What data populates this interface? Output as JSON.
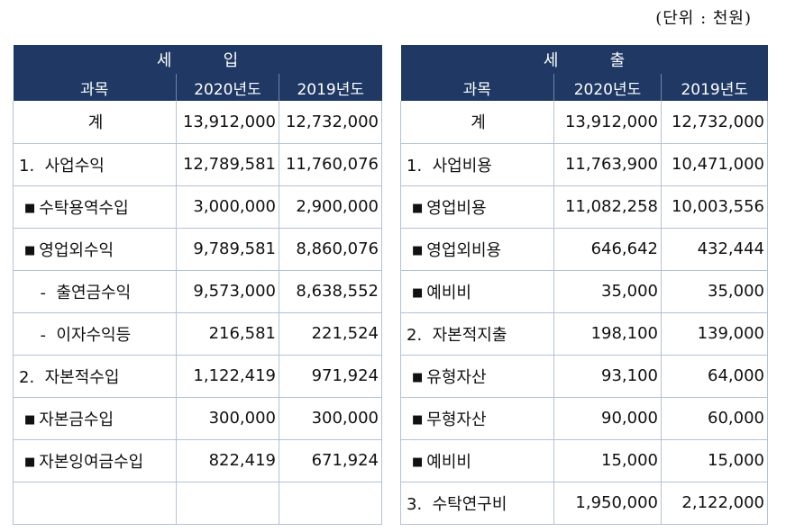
{
  "unit_label": "(단위 : 천원)",
  "colors": {
    "header_bg": "#1f3864",
    "grid": "#b3c2d6"
  },
  "revenue": {
    "title": "세          입",
    "columns": [
      "과목",
      "2020년도",
      "2019년도"
    ],
    "rows": [
      {
        "label": "계",
        "y2020": "13,912,000",
        "y2019": "12,732,000"
      },
      {
        "label": "1.  사업수익",
        "y2020": "12,789,581",
        "y2019": "11,760,076"
      },
      {
        "label": "수탁용역수입",
        "y2020": "3,000,000",
        "y2019": "2,900,000"
      },
      {
        "label": "영업외수익",
        "y2020": "9,789,581",
        "y2019": "8,860,076"
      },
      {
        "label": "  -  출연금수익",
        "y2020": "9,573,000",
        "y2019": "8,638,552"
      },
      {
        "label": "  -  이자수익등",
        "y2020": "216,581",
        "y2019": "221,524"
      },
      {
        "label": "2.  자본적수입",
        "y2020": "1,122,419",
        "y2019": "971,924"
      },
      {
        "label": "자본금수입",
        "y2020": "300,000",
        "y2019": "300,000"
      },
      {
        "label": "자본잉여금수입",
        "y2020": "822,419",
        "y2019": "671,924"
      },
      {
        "label": "",
        "y2020": "",
        "y2019": ""
      }
    ]
  },
  "expenditure": {
    "title": "세          출",
    "columns": [
      "과목",
      "2020년도",
      "2019년도"
    ],
    "rows": [
      {
        "label": "계",
        "y2020": "13,912,000",
        "y2019": "12,732,000"
      },
      {
        "label": "1.  사업비용",
        "y2020": "11,763,900",
        "y2019": "10,471,000"
      },
      {
        "label": "영업비용",
        "y2020": "11,082,258",
        "y2019": "10,003,556"
      },
      {
        "label": "영업외비용",
        "y2020": "646,642",
        "y2019": "432,444"
      },
      {
        "label": "예비비",
        "y2020": "35,000",
        "y2019": "35,000"
      },
      {
        "label": "2.  자본적지출",
        "y2020": "198,100",
        "y2019": "139,000"
      },
      {
        "label": "유형자산",
        "y2020": "93,100",
        "y2019": "64,000"
      },
      {
        "label": "무형자산",
        "y2020": "90,000",
        "y2019": "60,000"
      },
      {
        "label": "예비비",
        "y2020": "15,000",
        "y2019": "15,000"
      },
      {
        "label": "3.  수탁연구비",
        "y2020": "1,950,000",
        "y2019": "2,122,000"
      }
    ]
  },
  "bullet_glyph": "■"
}
